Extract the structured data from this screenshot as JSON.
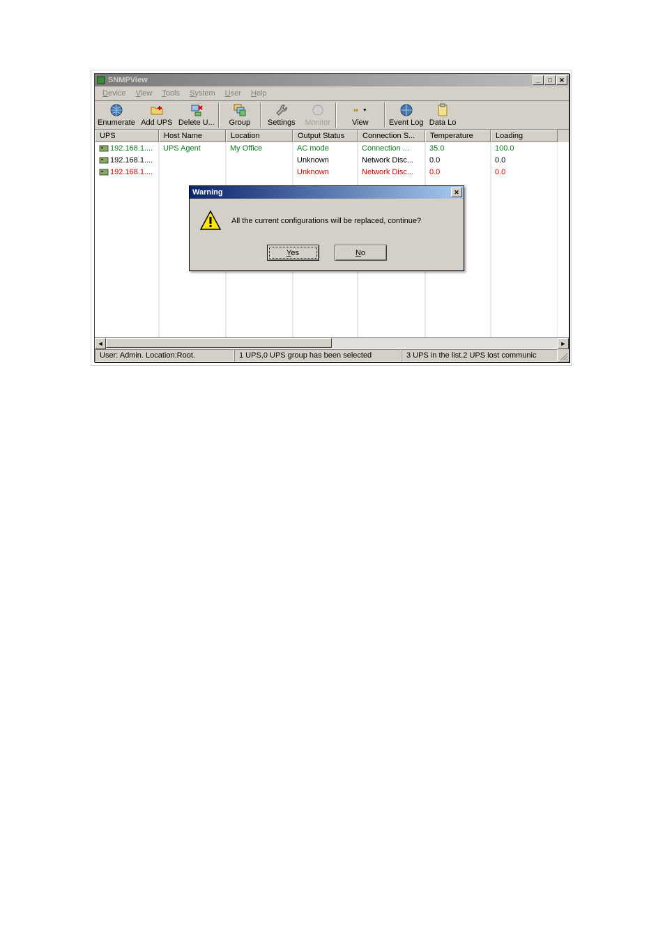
{
  "window": {
    "title": "SNMPView",
    "colors": {
      "titlebar_start": "#7a7a7a",
      "titlebar_end": "#bdbdbd",
      "face": "#d4d0c8"
    }
  },
  "menus": [
    {
      "label": "Device",
      "mnemonic": "D"
    },
    {
      "label": "View",
      "mnemonic": "V"
    },
    {
      "label": "Tools",
      "mnemonic": "T"
    },
    {
      "label": "System",
      "mnemonic": "S"
    },
    {
      "label": "User",
      "mnemonic": "U"
    },
    {
      "label": "Help",
      "mnemonic": "H"
    }
  ],
  "toolbar": [
    {
      "label": "Enumerate",
      "icon": "globe"
    },
    {
      "label": "Add UPS",
      "icon": "folder-plus"
    },
    {
      "label": "Delete U...",
      "icon": "node-delete"
    },
    {
      "label": "Group",
      "icon": "cascade"
    },
    {
      "label": "Settings",
      "icon": "wrench"
    },
    {
      "label": "Monitor",
      "icon": "sphere",
      "disabled": true
    },
    {
      "label": "View",
      "icon": "binoculars",
      "has_dropdown": true
    },
    {
      "label": "Event Log",
      "icon": "globe"
    },
    {
      "label": "Data Lo",
      "icon": "clipboard"
    }
  ],
  "columns": [
    {
      "label": "UPS"
    },
    {
      "label": "Host Name"
    },
    {
      "label": "Location"
    },
    {
      "label": "Output Status"
    },
    {
      "label": "Connection S..."
    },
    {
      "label": "Temperature"
    },
    {
      "label": "Loading"
    }
  ],
  "rows": [
    {
      "ups": "192.168.1....",
      "host": "UPS Agent",
      "loc": "My Office",
      "out": "AC mode",
      "conn": "Connection ...",
      "temp": "35.0",
      "load": "100.0",
      "color": "#0a7a1a",
      "icon": "server"
    },
    {
      "ups": "192.168.1....",
      "host": "",
      "loc": "",
      "out": "Unknown",
      "conn": "Network Disc...",
      "temp": "0.0",
      "load": "0.0",
      "color": "#000000",
      "icon": "server-camo"
    },
    {
      "ups": "192.168.1....",
      "host": "",
      "loc": "",
      "out": "Unknown",
      "conn": "Network Disc...",
      "temp": "0.0",
      "load": "0.0",
      "color": "#d40000",
      "icon": "server-camo"
    }
  ],
  "dialog": {
    "title": "Warning",
    "message": "All the current configurations will be replaced, continue?",
    "yes": "Yes",
    "no": "No"
  },
  "status": {
    "left": "User: Admin.  Location:Root.",
    "mid": "1 UPS,0 UPS group has been selected",
    "right": "3 UPS in the list.2 UPS  lost communic"
  }
}
